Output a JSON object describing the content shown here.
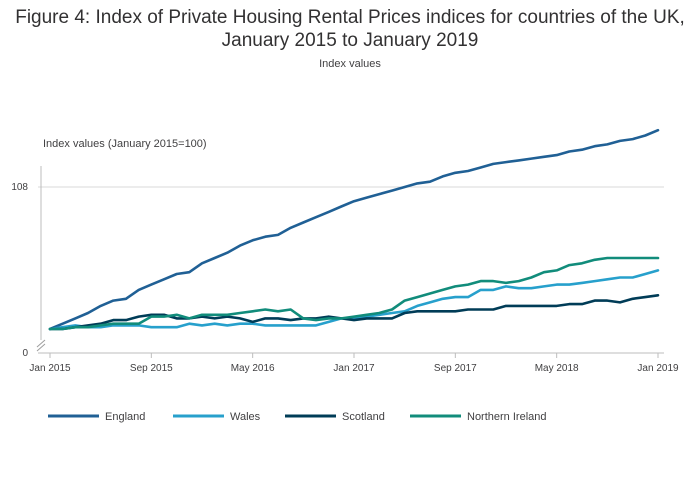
{
  "chart_data": {
    "type": "line",
    "title": "Figure 4: Index of Private Housing Rental Prices indices for countries of the UK, January 2015 to January 2019",
    "subtitle": "Index values",
    "ylabel": "Index values (January 2015=100)",
    "xlabel": "",
    "y_ticks": [
      "108",
      "0"
    ],
    "axis_break": true,
    "x_ticks": [
      "Jan 2015",
      "Sep 2015",
      "May 2016",
      "Jan 2017",
      "Sep 2017",
      "May 2018",
      "Jan 2019"
    ],
    "grid": "horizontal",
    "legend_position": "bottom",
    "n_points": 49,
    "series": [
      {
        "name": "England",
        "color": "#206095",
        "values": [
          100.0,
          100.3,
          100.6,
          100.9,
          101.3,
          101.6,
          101.7,
          102.2,
          102.5,
          102.8,
          103.1,
          103.2,
          103.7,
          104.0,
          104.3,
          104.7,
          105.0,
          105.2,
          105.3,
          105.7,
          106.0,
          106.3,
          106.6,
          106.9,
          107.2,
          107.4,
          107.6,
          107.8,
          108.0,
          108.2,
          108.3,
          108.6,
          108.8,
          108.9,
          109.1,
          109.3,
          109.4,
          109.5,
          109.6,
          109.7,
          109.8,
          110.0,
          110.1,
          110.3,
          110.4,
          110.6,
          110.7,
          110.9,
          111.2
        ]
      },
      {
        "name": "Wales",
        "color": "#27a0cc",
        "values": [
          100.0,
          100.1,
          100.2,
          100.1,
          100.1,
          100.2,
          100.2,
          100.2,
          100.1,
          100.1,
          100.1,
          100.3,
          100.2,
          100.3,
          100.2,
          100.3,
          100.3,
          100.2,
          100.2,
          100.2,
          100.2,
          100.2,
          100.4,
          100.6,
          100.6,
          100.7,
          100.8,
          100.9,
          101.0,
          101.3,
          101.5,
          101.7,
          101.8,
          101.8,
          102.2,
          102.2,
          102.4,
          102.3,
          102.3,
          102.4,
          102.5,
          102.5,
          102.6,
          102.7,
          102.8,
          102.9,
          102.9,
          103.1,
          103.3
        ]
      },
      {
        "name": "Scotland",
        "color": "#003c57",
        "values": [
          100.0,
          100.0,
          100.1,
          100.2,
          100.3,
          100.5,
          100.5,
          100.7,
          100.8,
          100.8,
          100.6,
          100.6,
          100.7,
          100.6,
          100.7,
          100.6,
          100.4,
          100.6,
          100.6,
          100.5,
          100.6,
          100.6,
          100.7,
          100.6,
          100.5,
          100.6,
          100.6,
          100.6,
          100.9,
          101.0,
          101.0,
          101.0,
          101.0,
          101.1,
          101.1,
          101.1,
          101.3,
          101.3,
          101.3,
          101.3,
          101.3,
          101.4,
          101.4,
          101.6,
          101.6,
          101.5,
          101.7,
          101.8,
          101.9
        ]
      },
      {
        "name": "Northern Ireland",
        "color": "#118c7b",
        "values": [
          100.0,
          100.0,
          100.1,
          100.1,
          100.2,
          100.3,
          100.3,
          100.3,
          100.7,
          100.7,
          100.8,
          100.6,
          100.8,
          100.8,
          100.8,
          100.9,
          101.0,
          101.1,
          101.0,
          101.1,
          100.6,
          100.5,
          100.6,
          100.6,
          100.7,
          100.8,
          100.9,
          101.1,
          101.6,
          101.8,
          102.0,
          102.2,
          102.4,
          102.5,
          102.7,
          102.7,
          102.6,
          102.7,
          102.9,
          103.2,
          103.3,
          103.6,
          103.7,
          103.9,
          104.0,
          104.0,
          104.0,
          104.0,
          104.0
        ]
      }
    ]
  }
}
